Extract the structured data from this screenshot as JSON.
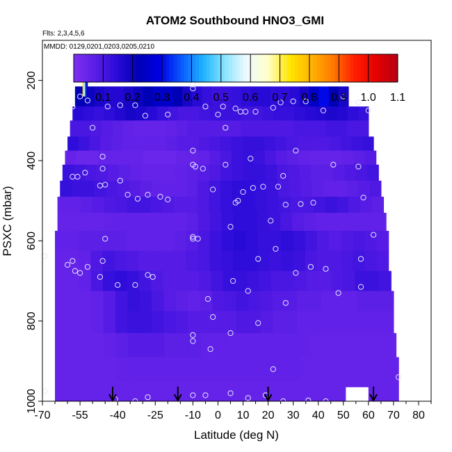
{
  "chart_data": {
    "type": "heatmap",
    "title": "ATOM2 Southbound HNO3_GMI",
    "annotations": {
      "flights": "Flts: 2,3,4,5,6",
      "dates": "MMDD: 0129,0201,0203,0205,0210"
    },
    "xlabel": "Latitude (deg N)",
    "ylabel": "PSXC (mbar)",
    "xlim": [
      -70,
      85
    ],
    "ylim": [
      1000,
      100
    ],
    "x_ticks": [
      -70,
      -55,
      -40,
      -25,
      -10,
      0,
      10,
      20,
      30,
      40,
      50,
      60,
      70,
      80
    ],
    "x_tick_labels": [
      "-70",
      "-55",
      "-40",
      "-25",
      "-10",
      "0",
      "10",
      "20",
      "30",
      "40",
      "50",
      "60",
      "70",
      "80"
    ],
    "y_ticks": [
      200,
      400,
      600,
      800,
      1000
    ],
    "y_tick_labels": [
      "200",
      "400",
      "600",
      "800",
      "1000"
    ],
    "colorbar": {
      "ticks": [
        0.1,
        0.2,
        0.3,
        0.4,
        0.5,
        0.6,
        0.7,
        0.8,
        0.9,
        1.0,
        1.1
      ],
      "tick_labels": [
        "0.1",
        "0.2",
        "0.3",
        "0.4",
        "0.5",
        "0.6",
        "0.7",
        "0.8",
        "0.9",
        "1.0",
        "1.1"
      ],
      "range": [
        0.0,
        1.1
      ],
      "colors": [
        "#7e2ff0",
        "#5a1ee6",
        "#2a0ad8",
        "#0000b4",
        "#0000e6",
        "#0a5aff",
        "#1eb4ff",
        "#8ce4ff",
        "#f0faff",
        "#ffffc8",
        "#ffe600",
        "#ffb400",
        "#ff7800",
        "#ff1e00",
        "#e60000",
        "#b40014"
      ]
    },
    "rows": [
      {
        "p_top": 215,
        "p_bot": 265,
        "lat_min": -57,
        "lat_max": 52,
        "values": [
          0.22,
          0.2,
          0.18,
          0.16,
          0.16,
          0.18,
          0.2,
          0.22,
          0.25,
          0.25,
          0.22,
          0.18,
          0.15,
          0.13,
          0.12,
          0.12,
          0.13,
          0.14,
          0.15,
          0.15,
          0.14,
          0.14,
          0.15,
          0.18,
          0.25,
          0.3,
          0.22,
          0.18
        ]
      },
      {
        "p_top": 265,
        "p_bot": 300,
        "lat_min": -58,
        "lat_max": 60,
        "values": [
          0.15,
          0.14,
          0.13,
          0.14,
          0.16,
          0.18,
          0.17,
          0.15,
          0.13,
          0.11,
          0.1,
          0.1,
          0.11,
          0.12,
          0.12,
          0.12,
          0.11,
          0.11,
          0.12,
          0.13,
          0.13,
          0.14,
          0.15,
          0.16,
          0.17,
          0.16,
          0.14,
          0.13
        ]
      },
      {
        "p_top": 300,
        "p_bot": 340,
        "lat_min": -59,
        "lat_max": 60,
        "values": [
          0.1,
          0.1,
          0.09,
          0.08,
          0.07,
          0.06,
          0.05,
          0.05,
          0.05,
          0.06,
          0.07,
          0.08,
          0.08,
          0.08,
          0.08,
          0.08,
          0.09,
          0.09,
          0.09,
          0.09,
          0.09,
          0.1,
          0.1,
          0.1,
          0.11,
          0.11,
          0.1,
          0.1
        ]
      },
      {
        "p_top": 340,
        "p_bot": 375,
        "lat_min": -60,
        "lat_max": 62,
        "values": [
          0.14,
          0.12,
          0.1,
          0.08,
          0.07,
          0.06,
          0.06,
          0.06,
          0.06,
          0.07,
          0.08,
          0.08,
          0.09,
          0.1,
          0.11,
          0.12,
          0.13,
          0.13,
          0.12,
          0.11,
          0.1,
          0.09,
          0.09,
          0.09,
          0.1,
          0.11,
          0.12,
          0.13
        ]
      },
      {
        "p_top": 375,
        "p_bot": 410,
        "lat_min": -61,
        "lat_max": 63,
        "values": [
          0.05,
          0.04,
          0.04,
          0.05,
          0.05,
          0.05,
          0.05,
          0.04,
          0.04,
          0.04,
          0.05,
          0.05,
          0.06,
          0.08,
          0.1,
          0.12,
          0.13,
          0.12,
          0.1,
          0.08,
          0.07,
          0.06,
          0.05,
          0.05,
          0.05,
          0.06,
          0.07,
          0.08
        ]
      },
      {
        "p_top": 410,
        "p_bot": 450,
        "lat_min": -62,
        "lat_max": 64,
        "values": [
          0.12,
          0.11,
          0.1,
          0.09,
          0.08,
          0.07,
          0.06,
          0.05,
          0.05,
          0.05,
          0.06,
          0.07,
          0.08,
          0.09,
          0.11,
          0.12,
          0.13,
          0.13,
          0.12,
          0.1,
          0.09,
          0.08,
          0.07,
          0.07,
          0.08,
          0.09,
          0.1,
          0.11
        ]
      },
      {
        "p_top": 450,
        "p_bot": 490,
        "lat_min": -63,
        "lat_max": 65,
        "values": [
          0.13,
          0.12,
          0.12,
          0.11,
          0.1,
          0.09,
          0.08,
          0.07,
          0.06,
          0.06,
          0.06,
          0.07,
          0.09,
          0.11,
          0.13,
          0.14,
          0.14,
          0.13,
          0.12,
          0.1,
          0.09,
          0.08,
          0.07,
          0.06,
          0.06,
          0.07,
          0.08,
          0.09
        ]
      },
      {
        "p_top": 490,
        "p_bot": 530,
        "lat_min": -64,
        "lat_max": 66,
        "values": [
          0.06,
          0.06,
          0.07,
          0.08,
          0.09,
          0.1,
          0.11,
          0.11,
          0.1,
          0.09,
          0.08,
          0.08,
          0.09,
          0.11,
          0.13,
          0.14,
          0.14,
          0.13,
          0.12,
          0.11,
          0.1,
          0.1,
          0.11,
          0.12,
          0.11,
          0.09,
          0.08,
          0.07
        ]
      },
      {
        "p_top": 530,
        "p_bot": 575,
        "lat_min": -64,
        "lat_max": 67,
        "values": [
          0.05,
          0.05,
          0.05,
          0.05,
          0.06,
          0.06,
          0.06,
          0.06,
          0.06,
          0.06,
          0.06,
          0.07,
          0.09,
          0.11,
          0.13,
          0.14,
          0.14,
          0.13,
          0.12,
          0.1,
          0.08,
          0.07,
          0.06,
          0.06,
          0.06,
          0.06,
          0.06,
          0.06
        ]
      },
      {
        "p_top": 575,
        "p_bot": 625,
        "lat_min": -65,
        "lat_max": 68,
        "values": [
          0.06,
          0.06,
          0.07,
          0.07,
          0.07,
          0.07,
          0.06,
          0.06,
          0.06,
          0.06,
          0.07,
          0.08,
          0.1,
          0.12,
          0.14,
          0.15,
          0.14,
          0.13,
          0.13,
          0.14,
          0.13,
          0.11,
          0.09,
          0.08,
          0.09,
          0.1,
          0.09,
          0.08
        ]
      },
      {
        "p_top": 625,
        "p_bot": 675,
        "lat_min": -65,
        "lat_max": 68,
        "values": [
          0.05,
          0.05,
          0.06,
          0.09,
          0.11,
          0.1,
          0.09,
          0.08,
          0.08,
          0.08,
          0.08,
          0.09,
          0.1,
          0.12,
          0.13,
          0.14,
          0.14,
          0.13,
          0.12,
          0.13,
          0.12,
          0.1,
          0.09,
          0.09,
          0.1,
          0.11,
          0.1,
          0.09
        ]
      },
      {
        "p_top": 675,
        "p_bot": 725,
        "lat_min": -65,
        "lat_max": 69,
        "values": [
          0.05,
          0.05,
          0.06,
          0.1,
          0.13,
          0.14,
          0.13,
          0.11,
          0.09,
          0.08,
          0.08,
          0.08,
          0.09,
          0.11,
          0.13,
          0.13,
          0.12,
          0.11,
          0.1,
          0.1,
          0.09,
          0.08,
          0.08,
          0.09,
          0.1,
          0.12,
          0.12,
          0.11
        ]
      },
      {
        "p_top": 725,
        "p_bot": 775,
        "lat_min": -65,
        "lat_max": 70,
        "values": [
          0.05,
          0.05,
          0.05,
          0.06,
          0.08,
          0.11,
          0.13,
          0.12,
          0.1,
          0.08,
          0.07,
          0.06,
          0.07,
          0.09,
          0.1,
          0.11,
          0.1,
          0.09,
          0.08,
          0.08,
          0.07,
          0.07,
          0.06,
          0.06,
          0.06,
          0.07,
          0.07,
          0.07
        ]
      },
      {
        "p_top": 775,
        "p_bot": 830,
        "lat_min": -65,
        "lat_max": 70,
        "values": [
          0.05,
          0.05,
          0.05,
          0.06,
          0.08,
          0.11,
          0.12,
          0.12,
          0.11,
          0.1,
          0.09,
          0.08,
          0.08,
          0.08,
          0.08,
          0.09,
          0.09,
          0.08,
          0.07,
          0.07,
          0.06,
          0.06,
          0.06,
          0.06,
          0.06,
          0.06,
          0.06,
          0.06
        ]
      },
      {
        "p_top": 830,
        "p_bot": 890,
        "lat_min": -65,
        "lat_max": 71,
        "values": [
          0.05,
          0.05,
          0.05,
          0.05,
          0.06,
          0.07,
          0.08,
          0.08,
          0.08,
          0.07,
          0.07,
          0.07,
          0.06,
          0.06,
          0.06,
          0.06,
          0.06,
          0.06,
          0.06,
          0.06,
          0.06,
          0.05,
          0.05,
          0.05,
          0.05,
          0.05,
          0.05,
          0.05
        ]
      },
      {
        "p_top": 890,
        "p_bot": 950,
        "lat_min": -65,
        "lat_max": 72,
        "values": [
          0.05,
          0.05,
          0.05,
          0.05,
          0.05,
          0.06,
          0.06,
          0.06,
          0.06,
          0.06,
          0.06,
          0.06,
          0.06,
          0.06,
          0.06,
          0.06,
          0.06,
          0.06,
          0.06,
          0.06,
          0.05,
          0.05,
          0.05,
          0.05,
          0.05,
          0.05,
          0.05,
          0.05
        ]
      },
      {
        "p_top": 950,
        "p_bot": 1005,
        "lat_min": -65,
        "lat_max": 72,
        "values": [
          0.05,
          0.05,
          0.05,
          0.05,
          0.05,
          0.05,
          0.05,
          0.05,
          0.05,
          0.05,
          0.05,
          0.05,
          0.05,
          0.05,
          0.05,
          0.05,
          0.05,
          0.05,
          0.05,
          0.05,
          0.05,
          0.05,
          0.05,
          0.05,
          0.05,
          0.05,
          0.05,
          0.05
        ]
      }
    ],
    "hot_spot": {
      "lat_min": -54,
      "lat_max": -52,
      "p_top": 195,
      "p_bot": 240,
      "values": [
        0.75,
        0.55,
        0.35,
        0.2
      ]
    },
    "obs_points": [
      {
        "x": -51,
        "y": 200
      },
      {
        "x": -48,
        "y": 200
      },
      {
        "x": -55,
        "y": 240
      },
      {
        "x": -52,
        "y": 250
      },
      {
        "x": -58,
        "y": 265
      },
      {
        "x": -44,
        "y": 265
      },
      {
        "x": -39,
        "y": 262
      },
      {
        "x": -33,
        "y": 262
      },
      {
        "x": -29,
        "y": 288
      },
      {
        "x": -20,
        "y": 285
      },
      {
        "x": -10,
        "y": 210
      },
      {
        "x": -10,
        "y": 220
      },
      {
        "x": -5,
        "y": 265
      },
      {
        "x": 0,
        "y": 285
      },
      {
        "x": 2,
        "y": 265
      },
      {
        "x": 7,
        "y": 270
      },
      {
        "x": 9,
        "y": 278
      },
      {
        "x": 11,
        "y": 278
      },
      {
        "x": 15,
        "y": 278
      },
      {
        "x": 22,
        "y": 268
      },
      {
        "x": 25,
        "y": 255
      },
      {
        "x": 30,
        "y": 252
      },
      {
        "x": 35,
        "y": 252
      },
      {
        "x": 42,
        "y": 275
      },
      {
        "x": 50,
        "y": 240
      },
      {
        "x": 56,
        "y": 255
      },
      {
        "x": 60,
        "y": 275
      },
      {
        "x": 3,
        "y": 318
      },
      {
        "x": -50,
        "y": 318
      },
      {
        "x": -46,
        "y": 390
      },
      {
        "x": -46,
        "y": 420
      },
      {
        "x": -10,
        "y": 375
      },
      {
        "x": -10,
        "y": 410
      },
      {
        "x": -9,
        "y": 415
      },
      {
        "x": -6,
        "y": 420
      },
      {
        "x": 3,
        "y": 410
      },
      {
        "x": 13,
        "y": 395
      },
      {
        "x": 31,
        "y": 375
      },
      {
        "x": -53,
        "y": 430
      },
      {
        "x": -56,
        "y": 440
      },
      {
        "x": -58,
        "y": 440
      },
      {
        "x": -39,
        "y": 450
      },
      {
        "x": -45,
        "y": 460
      },
      {
        "x": -47,
        "y": 462
      },
      {
        "x": -36,
        "y": 485
      },
      {
        "x": -32,
        "y": 495
      },
      {
        "x": -28,
        "y": 485
      },
      {
        "x": -23,
        "y": 490
      },
      {
        "x": -20,
        "y": 497
      },
      {
        "x": -2,
        "y": 472
      },
      {
        "x": 8,
        "y": 500
      },
      {
        "x": 10,
        "y": 478
      },
      {
        "x": 14,
        "y": 468
      },
      {
        "x": 18,
        "y": 465
      },
      {
        "x": 24,
        "y": 465
      },
      {
        "x": 26,
        "y": 438
      },
      {
        "x": 27,
        "y": 510
      },
      {
        "x": 33,
        "y": 508
      },
      {
        "x": 38,
        "y": 505
      },
      {
        "x": 46,
        "y": 410
      },
      {
        "x": 56,
        "y": 415
      },
      {
        "x": 58,
        "y": 492
      },
      {
        "x": -45,
        "y": 595
      },
      {
        "x": -10,
        "y": 590
      },
      {
        "x": -10,
        "y": 595
      },
      {
        "x": -8,
        "y": 595
      },
      {
        "x": 5,
        "y": 565
      },
      {
        "x": 7,
        "y": 505
      },
      {
        "x": 21,
        "y": 550
      },
      {
        "x": 23,
        "y": 620
      },
      {
        "x": 16,
        "y": 645
      },
      {
        "x": -69,
        "y": 638
      },
      {
        "x": -60,
        "y": 660
      },
      {
        "x": -58,
        "y": 650
      },
      {
        "x": -57,
        "y": 675
      },
      {
        "x": -55,
        "y": 680
      },
      {
        "x": -52,
        "y": 665
      },
      {
        "x": -47,
        "y": 690
      },
      {
        "x": -46,
        "y": 650
      },
      {
        "x": -40,
        "y": 710
      },
      {
        "x": -33,
        "y": 710
      },
      {
        "x": -28,
        "y": 685
      },
      {
        "x": -26,
        "y": 690
      },
      {
        "x": 6,
        "y": 700
      },
      {
        "x": 12,
        "y": 725
      },
      {
        "x": 31,
        "y": 680
      },
      {
        "x": 37,
        "y": 665
      },
      {
        "x": 43,
        "y": 670
      },
      {
        "x": 48,
        "y": 730
      },
      {
        "x": 57,
        "y": 645
      },
      {
        "x": 57,
        "y": 715
      },
      {
        "x": 62,
        "y": 585
      },
      {
        "x": -4,
        "y": 745
      },
      {
        "x": -2,
        "y": 790
      },
      {
        "x": 5,
        "y": 830
      },
      {
        "x": 16,
        "y": 805
      },
      {
        "x": 27,
        "y": 755
      },
      {
        "x": -10,
        "y": 835
      },
      {
        "x": -10,
        "y": 850
      },
      {
        "x": -3,
        "y": 870
      },
      {
        "x": 22,
        "y": 920
      },
      {
        "x": 72,
        "y": 940
      },
      {
        "x": -69,
        "y": 975
      },
      {
        "x": -41,
        "y": 995
      },
      {
        "x": -33,
        "y": 1000
      },
      {
        "x": -28,
        "y": 990
      },
      {
        "x": -10,
        "y": 985
      },
      {
        "x": -5,
        "y": 985
      },
      {
        "x": 5,
        "y": 980
      },
      {
        "x": 12,
        "y": 992
      },
      {
        "x": 19,
        "y": 985
      },
      {
        "x": 26,
        "y": 1000
      },
      {
        "x": 36,
        "y": 998
      },
      {
        "x": 43,
        "y": 1000
      }
    ],
    "missing_block": {
      "lat_min": 51,
      "lat_max": 60,
      "p_top": 965,
      "p_bot": 1010
    },
    "arrows": [
      -42,
      -16,
      20,
      62
    ],
    "grid": false,
    "legend": "colorbar-top"
  }
}
